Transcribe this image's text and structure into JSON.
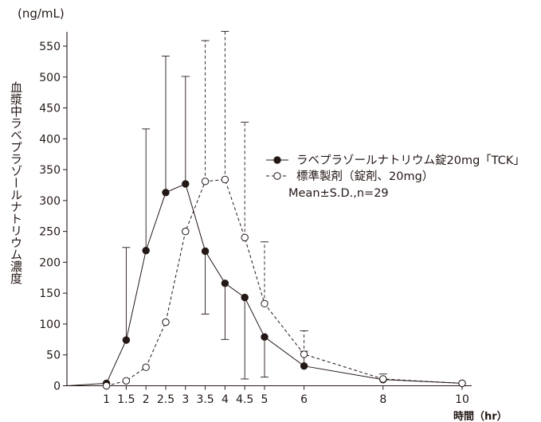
{
  "chart_data": {
    "type": "line",
    "unit_label": "(ng/mL)",
    "ylabel": "血漿中ラベプラゾールナトリウム濃度",
    "xlabel": "時間（hr）",
    "xlim": [
      0,
      10
    ],
    "ylim": [
      0,
      550
    ],
    "x_ticks": [
      1,
      1.5,
      2,
      2.5,
      3,
      3.5,
      4,
      4.5,
      5,
      6,
      8,
      10
    ],
    "x_tick_labels": [
      "1",
      "1.5",
      "2",
      "2.5",
      "3",
      "3.5",
      "4",
      "4.5",
      "5",
      "6",
      "8",
      "10"
    ],
    "y_ticks": [
      0,
      50,
      100,
      150,
      200,
      250,
      300,
      350,
      400,
      450,
      500,
      550
    ],
    "y_tick_labels": [
      "0",
      "50",
      "100",
      "150",
      "200",
      "250",
      "300",
      "350",
      "400",
      "450",
      "500",
      "550"
    ],
    "legend_position": "right",
    "series": [
      {
        "name": "ラベプラゾールナトリウム錠20mg「TCK」",
        "marker": "filled-circle",
        "line_style": "solid",
        "x": [
          0,
          1,
          1.5,
          2,
          2.5,
          3,
          3.5,
          4,
          4.5,
          5,
          6,
          8,
          10
        ],
        "y": [
          0,
          4,
          74,
          219,
          313,
          327,
          218,
          166,
          143,
          79,
          32,
          10,
          4
        ],
        "sd": [
          0,
          0,
          150,
          197,
          221,
          174,
          102,
          91,
          132,
          65,
          24,
          0,
          0
        ]
      },
      {
        "name": "標準製剤（錠剤、20mg）",
        "marker": "open-circle",
        "line_style": "dashed",
        "x": [
          0,
          1,
          1.5,
          2,
          2.5,
          3,
          3.5,
          4,
          4.5,
          5,
          6,
          8,
          10
        ],
        "y": [
          0,
          0,
          8,
          30,
          103,
          250,
          331,
          334,
          240,
          133,
          51,
          11,
          4
        ],
        "sd": [
          0,
          0,
          0,
          0,
          0,
          0,
          228,
          240,
          187,
          100,
          38,
          8,
          0
        ]
      }
    ],
    "annotation": "Mean±S.D.,n=29"
  }
}
